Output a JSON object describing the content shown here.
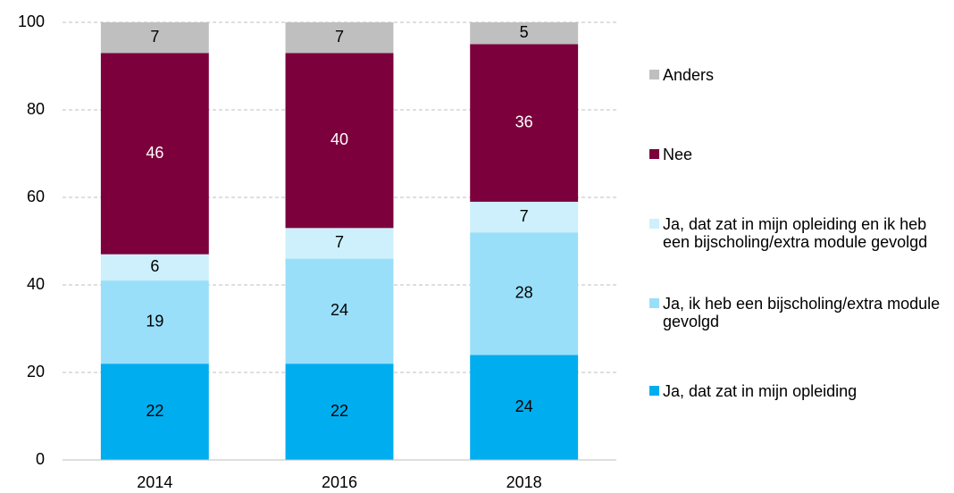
{
  "chart_data": {
    "type": "stacked_bar",
    "categories": [
      "2014",
      "2016",
      "2018"
    ],
    "series": [
      {
        "name": "Ja, dat zat in mijn opleiding",
        "color": "#00adee",
        "label_color": "#000000",
        "values": [
          22,
          22,
          24
        ]
      },
      {
        "name": "Ja, ik heb een bijscholing/extra module gevolgd",
        "color": "#99dff9",
        "label_color": "#000000",
        "values": [
          19,
          24,
          28
        ]
      },
      {
        "name": "Ja, dat zat in mijn opleiding en ik heb een bijscholing/extra module gevolgd",
        "color": "#cdf0fc",
        "label_color": "#000000",
        "values": [
          6,
          7,
          7
        ]
      },
      {
        "name": "Nee",
        "color": "#7b003c",
        "label_color": "#ffffff",
        "values": [
          46,
          40,
          36
        ]
      },
      {
        "name": "Anders",
        "color": "#bfbfbf",
        "label_color": "#000000",
        "values": [
          7,
          7,
          5
        ]
      }
    ],
    "ylim": [
      0,
      100
    ],
    "yticks": [
      0,
      20,
      40,
      60,
      80,
      100
    ],
    "grid": true,
    "legend": "right"
  }
}
